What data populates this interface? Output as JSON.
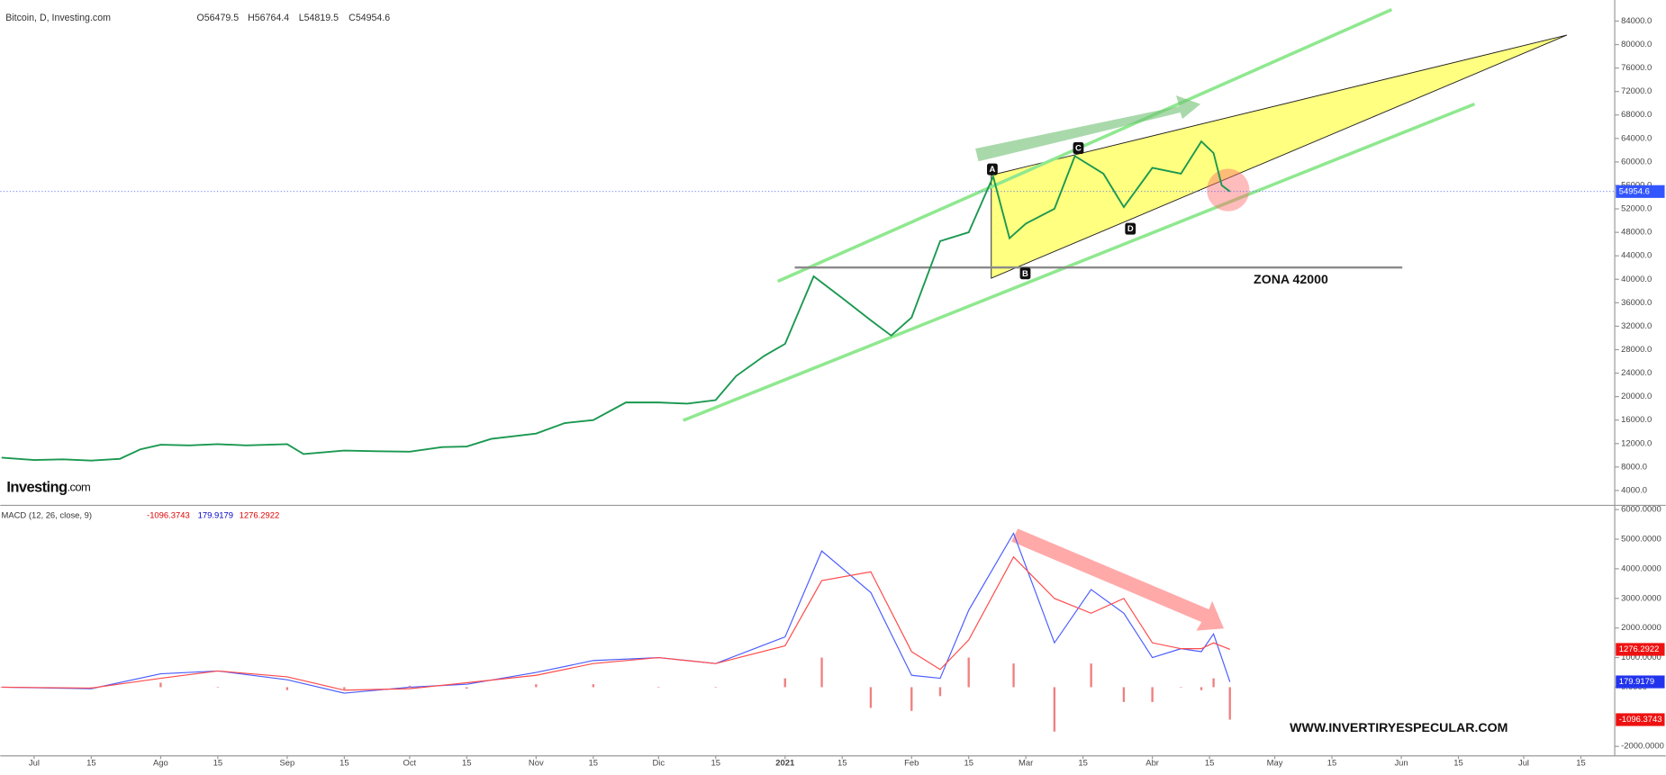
{
  "chart_data": [
    {
      "type": "line",
      "title": "Bitcoin, D, Investing.com",
      "ohlc_labels": [
        "O56479.5",
        "H56764.4",
        "L54819.5",
        "C54954.6"
      ],
      "logo": [
        "Investing",
        ".com"
      ],
      "annotations": {
        "points": [
          "A",
          "B",
          "C",
          "D"
        ],
        "zone": "ZONA 42000"
      },
      "x": [
        -8,
        0,
        7,
        14,
        21,
        26,
        31,
        38,
        45,
        52,
        62,
        66,
        76,
        84,
        92,
        100,
        106,
        112,
        123,
        130,
        137,
        145,
        153,
        160,
        167,
        172,
        179,
        184,
        191,
        198,
        205,
        210,
        215,
        222,
        229,
        235,
        239,
        243,
        250,
        255,
        262,
        267,
        274,
        281,
        286,
        289,
        291,
        293
      ],
      "series": [
        {
          "name": "Bitcoin",
          "color": "#1a9850",
          "values": [
            9600,
            9200,
            9300,
            9100,
            9400,
            11000,
            11800,
            11700,
            11900,
            11700,
            11900,
            10200,
            10800,
            10700,
            10600,
            11400,
            11500,
            12800,
            13700,
            15500,
            16000,
            19000,
            19000,
            18800,
            19400,
            23500,
            27000,
            29000,
            40500,
            36800,
            33000,
            30400,
            33500,
            46500,
            48000,
            57500,
            47000,
            49500,
            52000,
            61000,
            58000,
            52300,
            59000,
            58000,
            63500,
            61500,
            56000,
            54954.6
          ]
        }
      ],
      "xlim": [
        -8.3,
        387.3
      ],
      "ylim": [
        1650,
        87600
      ],
      "yticks": [
        {
          "value": 4000,
          "label": "4000.0"
        },
        {
          "value": 8000,
          "label": "8000.0"
        },
        {
          "value": 12000,
          "label": "12000.0"
        },
        {
          "value": 16000,
          "label": "16000.0"
        },
        {
          "value": 20000,
          "label": "20000.0"
        },
        {
          "value": 24000,
          "label": "24000.0"
        },
        {
          "value": 28000,
          "label": "28000.0"
        },
        {
          "value": 32000,
          "label": "32000.0"
        },
        {
          "value": 36000,
          "label": "36000.0"
        },
        {
          "value": 40000,
          "label": "40000.0"
        },
        {
          "value": 44000,
          "label": "44000.0"
        },
        {
          "value": 48000,
          "label": "48000.0"
        },
        {
          "value": 52000,
          "label": "52000.0"
        },
        {
          "value": 56000,
          "label": "56000.0"
        },
        {
          "value": 60000,
          "label": "60000.0"
        },
        {
          "value": 64000,
          "label": "64000.0"
        },
        {
          "value": 68000,
          "label": "68000.0"
        },
        {
          "value": 72000,
          "label": "72000.0"
        },
        {
          "value": 76000,
          "label": "76000.0"
        },
        {
          "value": 80000,
          "label": "80000.0"
        },
        {
          "value": 84000,
          "label": "84000.0"
        }
      ]
    },
    {
      "type": "macd",
      "title": "MACD (12, 26, close, 9)",
      "annotation": "WWW.INVERTIRYESPECULAR.COM",
      "x": [
        -8,
        14,
        31,
        45,
        62,
        76,
        92,
        106,
        123,
        137,
        153,
        167,
        184,
        193,
        205,
        215,
        222,
        229,
        240,
        250,
        259,
        267,
        274,
        281,
        286,
        289,
        293
      ],
      "series": [
        {
          "name": "MACD",
          "kind": "line",
          "color": "#4a5cff",
          "values": [
            0,
            -50,
            450,
            550,
            250,
            -200,
            0,
            100,
            500,
            900,
            1000,
            800,
            1700,
            4600,
            3200,
            400,
            300,
            2600,
            5200,
            1500,
            3300,
            2500,
            1000,
            1300,
            1200,
            1800,
            179.9179
          ]
        },
        {
          "name": "Signal",
          "kind": "line",
          "color": "#ff4a4a",
          "values": [
            0,
            -30,
            300,
            550,
            350,
            -100,
            -50,
            150,
            400,
            800,
            1000,
            800,
            1400,
            3600,
            3900,
            1200,
            600,
            1600,
            4400,
            3000,
            2500,
            3000,
            1500,
            1300,
            1300,
            1500,
            1276.2922
          ]
        },
        {
          "name": "Histogram",
          "kind": "bar",
          "color": "#f08080",
          "values": [
            0,
            -20,
            150,
            0,
            -100,
            -100,
            50,
            -50,
            100,
            100,
            0,
            0,
            300,
            1000,
            -700,
            -800,
            -300,
            1000,
            800,
            -1500,
            800,
            -500,
            -500,
            0,
            -100,
            300,
            -1096.3743
          ]
        }
      ],
      "xlim": [
        -8.3,
        387.3
      ],
      "ylim": [
        -2321,
        6108
      ],
      "xticks": [
        {
          "value": 0,
          "label": "Jul"
        },
        {
          "value": 14,
          "label": "15"
        },
        {
          "value": 31,
          "label": "Ago"
        },
        {
          "value": 45,
          "label": "15"
        },
        {
          "value": 62,
          "label": "Sep"
        },
        {
          "value": 76,
          "label": "15"
        },
        {
          "value": 92,
          "label": "Oct"
        },
        {
          "value": 106,
          "label": "15"
        },
        {
          "value": 123,
          "label": "Nov"
        },
        {
          "value": 137,
          "label": "15"
        },
        {
          "value": 153,
          "label": "Dic"
        },
        {
          "value": 167,
          "label": "15"
        },
        {
          "value": 184,
          "label": "2021"
        },
        {
          "value": 198,
          "label": "15"
        },
        {
          "value": 215,
          "label": "Feb"
        },
        {
          "value": 229,
          "label": "15"
        },
        {
          "value": 243,
          "label": "Mar"
        },
        {
          "value": 257,
          "label": "15"
        },
        {
          "value": 274,
          "label": "Abr"
        },
        {
          "value": 288,
          "label": "15"
        },
        {
          "value": 304,
          "label": "May"
        },
        {
          "value": 318,
          "label": "15"
        },
        {
          "value": 335,
          "label": "Jun"
        },
        {
          "value": 349,
          "label": "15"
        },
        {
          "value": 365,
          "label": "Jul"
        },
        {
          "value": 379,
          "label": "15"
        }
      ],
      "yticks": [
        {
          "value": -2000,
          "label": "-2000.0000"
        },
        {
          "value": 0,
          "label": "0.0000"
        },
        {
          "value": 1000,
          "label": "1000.0000"
        },
        {
          "value": 2000,
          "label": "2000.0000"
        },
        {
          "value": 3000,
          "label": "3000.0000"
        },
        {
          "value": 4000,
          "label": "4000.0000"
        },
        {
          "value": 5000,
          "label": "5000.0000"
        },
        {
          "value": 6000,
          "label": "6000.0000"
        }
      ]
    }
  ]
}
